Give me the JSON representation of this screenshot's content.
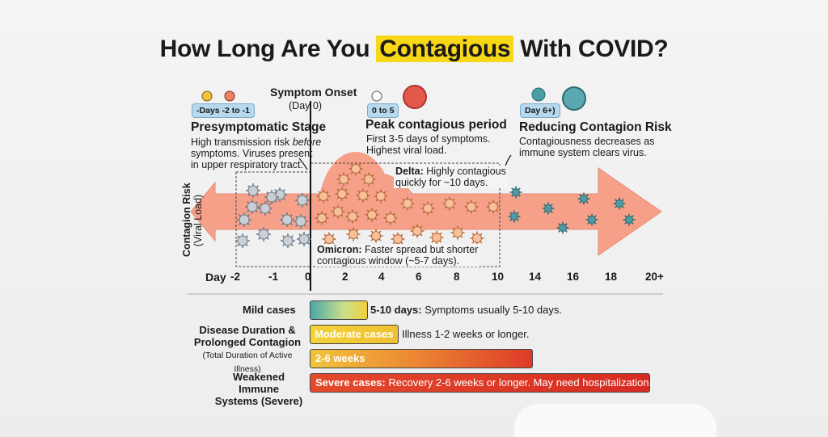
{
  "title": {
    "pre": "How Long Are You ",
    "highlight": "Contagious",
    "post": " With COVID?"
  },
  "onset": {
    "label": "Symptom Onset",
    "sub": "(Day 0)"
  },
  "presymptomatic": {
    "badge": "-Days -2 to -1",
    "heading": "Presymptomatic Stage",
    "line1_pre": "High transmission risk ",
    "line1_em": "before",
    "line2": "symptoms. Viruses present",
    "line3": "in upper respiratory tract."
  },
  "peak": {
    "badge": "0 to 5",
    "heading": "Peak contagious period",
    "line1": "First 3-5 days of symptoms.",
    "line2": "Highest viral load."
  },
  "reducing": {
    "badge": "Day 6+)",
    "heading": "Reducing Contagion Risk",
    "line1": "Contagiousness decreases as",
    "line2": "immune system clears virus."
  },
  "delta": {
    "bold": "Delta:",
    "text1": " Highly contagious",
    "text2": "quickly for ~10 days."
  },
  "omicron": {
    "bold": "Omicron:",
    "text1": " Faster spread but shorter",
    "text2": "contagious window (~5-7 days)."
  },
  "y_axis": {
    "label": "Contagion Risk",
    "sub": "(Viral Load)"
  },
  "x_axis": {
    "label": "Day",
    "ticks": [
      "-2",
      "-1",
      "0",
      "2",
      "4",
      "6",
      "8",
      "10",
      "14",
      "16",
      "18",
      "20+"
    ]
  },
  "durations": {
    "mild": {
      "label": "Mild cases",
      "bold": "5-10 days:",
      "text": " Symptoms usually 5-10 days."
    },
    "moderate": {
      "label1": "Disease Duration &",
      "label2": "Prolonged Contagion",
      "label3": "(Total Duration of Active Illness)",
      "bar": "Moderate cases",
      "text": "Illness 1-2 weeks or longer.",
      "bar2": "2-6 weeks"
    },
    "severe": {
      "label1": "Weakened Immune",
      "label2": "Systems (Severe)",
      "bold": "Severe cases:",
      "text": " Recovery 2-6 weeks or longer. May need hospitalization."
    }
  },
  "colors": {
    "arrow": "#f6a08a",
    "highlight": "#f8d816",
    "badge": "#b8d8ee",
    "virus_gray": "#8e9aa6",
    "virus_orange": "#e4936b",
    "virus_teal": "#4d9ba3"
  }
}
